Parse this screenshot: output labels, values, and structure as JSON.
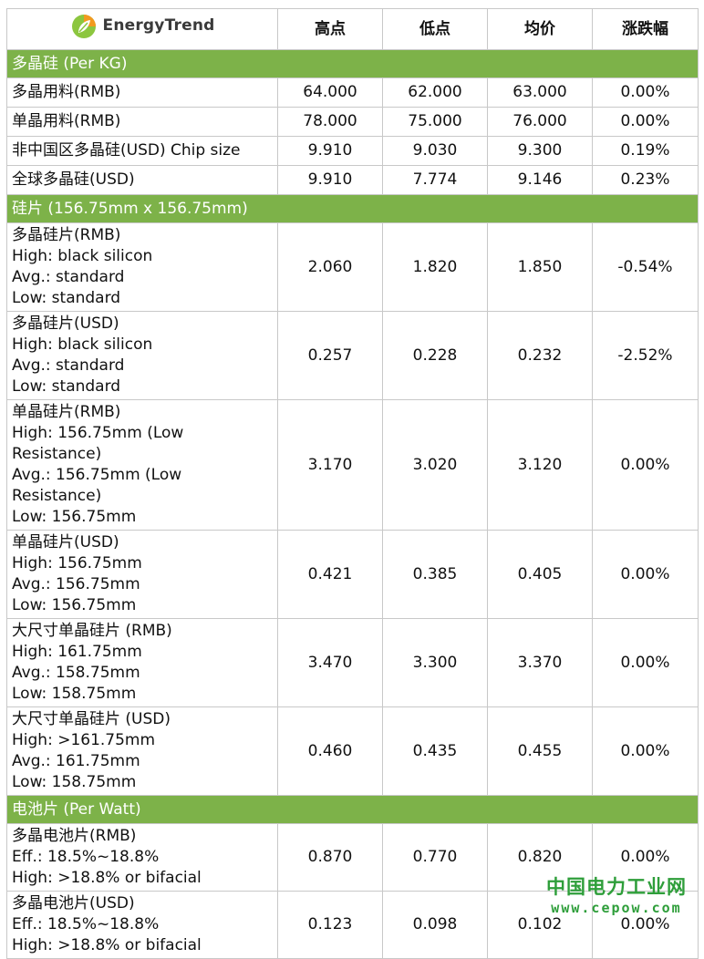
{
  "header": {
    "brand": "EnergyTrend",
    "columns": [
      "高点",
      "低点",
      "均价",
      "涨跌幅"
    ]
  },
  "sections": [
    {
      "title": "多晶硅 (Per KG)",
      "rows": [
        {
          "lines": [
            "多晶用料(RMB)"
          ],
          "high": "64.000",
          "low": "62.000",
          "avg": "63.000",
          "change": "0.00%"
        },
        {
          "lines": [
            "单晶用料(RMB)"
          ],
          "high": "78.000",
          "low": "75.000",
          "avg": "76.000",
          "change": "0.00%"
        },
        {
          "lines": [
            "非中国区多晶硅(USD) Chip size"
          ],
          "high": "9.910",
          "low": "9.030",
          "avg": "9.300",
          "change": "0.19%"
        },
        {
          "lines": [
            "全球多晶硅(USD)"
          ],
          "high": "9.910",
          "low": "7.774",
          "avg": "9.146",
          "change": "0.23%"
        }
      ]
    },
    {
      "title": "硅片 (156.75mm x 156.75mm)",
      "rows": [
        {
          "lines": [
            "多晶硅片(RMB)",
            "High: black silicon",
            "Avg.: standard",
            "Low: standard"
          ],
          "high": "2.060",
          "low": "1.820",
          "avg": "1.850",
          "change": "-0.54%"
        },
        {
          "lines": [
            "多晶硅片(USD)",
            "High: black silicon",
            "Avg.: standard",
            "Low: standard"
          ],
          "high": "0.257",
          "low": "0.228",
          "avg": "0.232",
          "change": "-2.52%"
        },
        {
          "lines": [
            "单晶硅片(RMB)",
            "High: 156.75mm (Low Resistance)",
            "Avg.: 156.75mm (Low Resistance)",
            "Low: 156.75mm"
          ],
          "high": "3.170",
          "low": "3.020",
          "avg": "3.120",
          "change": "0.00%"
        },
        {
          "lines": [
            "单晶硅片(USD)",
            "High: 156.75mm",
            "Avg.: 156.75mm",
            "Low: 156.75mm"
          ],
          "high": "0.421",
          "low": "0.385",
          "avg": "0.405",
          "change": "0.00%"
        },
        {
          "lines": [
            "大尺寸单晶硅片 (RMB)",
            "High: 161.75mm",
            "Avg.: 158.75mm",
            "Low: 158.75mm"
          ],
          "high": "3.470",
          "low": "3.300",
          "avg": "3.370",
          "change": "0.00%"
        },
        {
          "lines": [
            "大尺寸单晶硅片 (USD)",
            "High: >161.75mm",
            "Avg.: 161.75mm",
            "Low: 158.75mm"
          ],
          "high": "0.460",
          "low": "0.435",
          "avg": "0.455",
          "change": "0.00%"
        }
      ]
    },
    {
      "title": "电池片 (Per Watt)",
      "rows": [
        {
          "lines": [
            "多晶电池片(RMB)",
            "Eff.: 18.5%~18.8%",
            "High: >18.8% or bifacial"
          ],
          "high": "0.870",
          "low": "0.770",
          "avg": "0.820",
          "change": "0.00%"
        },
        {
          "lines": [
            "多晶电池片(USD)",
            "Eff.: 18.5%~18.8%",
            "High: >18.8% or bifacial"
          ],
          "high": "0.123",
          "low": "0.098",
          "avg": "0.102",
          "change": "0.00%"
        }
      ]
    }
  ],
  "watermark": {
    "name": "中国电力工业网",
    "url": "www.cepow.com"
  },
  "colors": {
    "section_bg": "#7db249",
    "logo_green": "#8cc63f",
    "logo_orange": "#f29a1f",
    "watermark": "#2e9e3a"
  },
  "icons": {
    "logo": "energytrend-leaf-icon"
  }
}
